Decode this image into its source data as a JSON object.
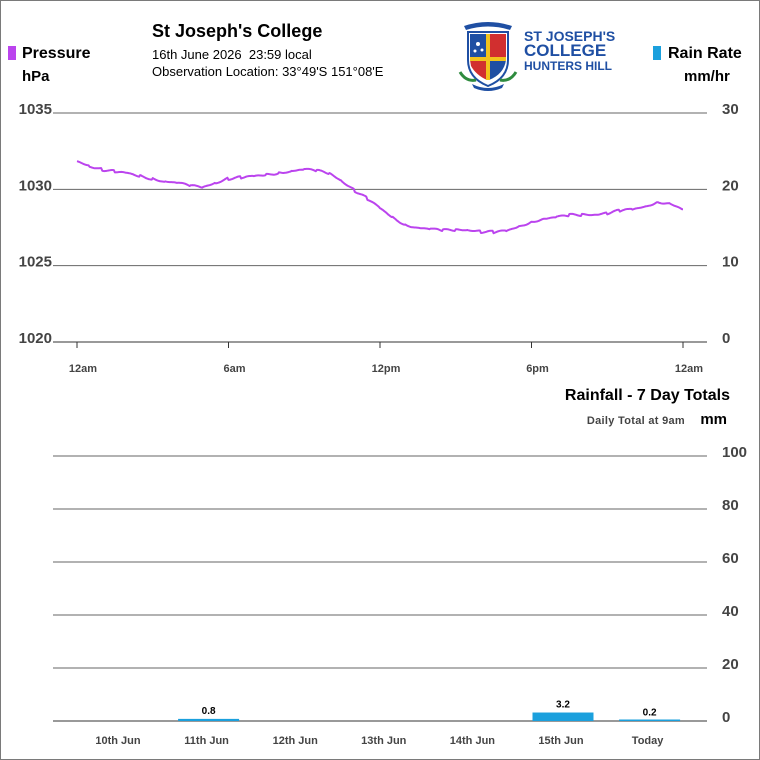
{
  "header": {
    "title": "St Joseph's College",
    "date_line": "16th June 2026  23:59 local",
    "location_line": "Observation Location: 33°49'S 151°08'E"
  },
  "logo": {
    "line1": "ST JOSEPH'S",
    "line2": "COLLEGE",
    "line3": "HUNTERS HILL"
  },
  "legend": {
    "left": {
      "label": "Pressure",
      "unit": "hPa",
      "color": "#bb44ee"
    },
    "right": {
      "label": "Rain Rate",
      "unit": "mm/hr",
      "color": "#1ba0dd"
    }
  },
  "rainfall": {
    "title": "Rainfall - 7 Day Totals",
    "subtitle": "Daily Total at 9am",
    "unit": "mm"
  },
  "chart_data": [
    {
      "type": "line",
      "series": [
        {
          "name": "Pressure",
          "color": "#bb44ee",
          "x": [
            0,
            0.5,
            1,
            1.5,
            2,
            2.5,
            3,
            3.5,
            4,
            4.5,
            5,
            5.5,
            6,
            6.5,
            7,
            7.5,
            8,
            8.5,
            9,
            9.5,
            10,
            10.5,
            11,
            11.5,
            12,
            12.5,
            13,
            13.5,
            14,
            14.5,
            15,
            15.5,
            16,
            16.5,
            17,
            17.5,
            18,
            18.5,
            19,
            19.5,
            20,
            20.5,
            21,
            21.5,
            22,
            22.5,
            23,
            23.5,
            24
          ],
          "values": [
            1031.8,
            1031.5,
            1031.3,
            1031.2,
            1031.1,
            1030.9,
            1030.7,
            1030.5,
            1030.4,
            1030.2,
            1030.1,
            1030.4,
            1030.7,
            1030.8,
            1030.9,
            1031.0,
            1031.1,
            1031.2,
            1031.3,
            1031.2,
            1031.0,
            1030.5,
            1029.9,
            1029.4,
            1028.8,
            1028.2,
            1027.7,
            1027.5,
            1027.4,
            1027.3,
            1027.3,
            1027.3,
            1027.2,
            1027.2,
            1027.3,
            1027.6,
            1027.9,
            1028.1,
            1028.2,
            1028.3,
            1028.3,
            1028.3,
            1028.4,
            1028.6,
            1028.7,
            1028.9,
            1029.2,
            1029.1,
            1028.7
          ]
        },
        {
          "name": "Rain Rate",
          "color": "#1ba0dd",
          "x": [],
          "values": []
        }
      ],
      "x_ticks": [
        "12am",
        "6am",
        "12pm",
        "6pm",
        "12am"
      ],
      "xlim": [
        0,
        24
      ],
      "ylim_left": [
        1020,
        1035
      ],
      "yticks_left": [
        "1035",
        "1030",
        "1025",
        "1020"
      ],
      "ylim_right": [
        0,
        30
      ],
      "yticks_right": [
        "30",
        "20",
        "10",
        "0"
      ],
      "ylabel_left": "hPa",
      "ylabel_right": "mm/hr",
      "grid": true
    },
    {
      "type": "bar",
      "title": "Rainfall - 7 Day Totals",
      "categories": [
        "10th Jun",
        "11th Jun",
        "12th Jun",
        "13th Jun",
        "14th Jun",
        "15th Jun",
        "Today"
      ],
      "values": [
        0,
        0.8,
        0,
        0,
        0,
        3.2,
        0.2
      ],
      "labels": [
        "",
        "0.8",
        "",
        "",
        "",
        "3.2",
        "0.2"
      ],
      "ylim": [
        0,
        100
      ],
      "yticks": [
        "100",
        "80",
        "60",
        "40",
        "20",
        "0"
      ],
      "ylabel": "mm",
      "color": "#1ba0dd",
      "grid": true
    }
  ]
}
